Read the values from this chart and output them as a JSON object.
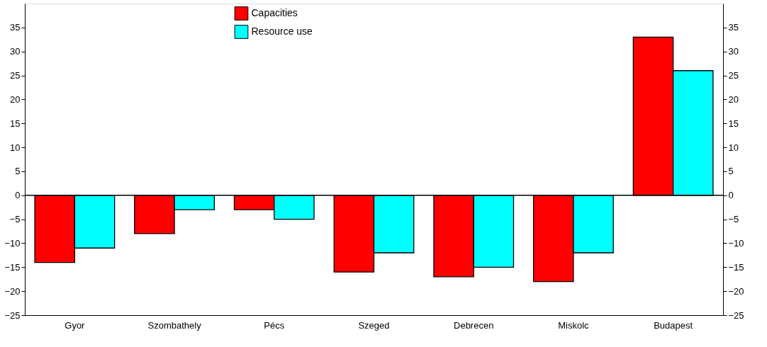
{
  "chart_data": {
    "type": "bar",
    "categories": [
      "Gyor",
      "Szombathely",
      "Pécs",
      "Szeged",
      "Debrecen",
      "Miskolc",
      "Budapest"
    ],
    "series": [
      {
        "name": "Capacities",
        "color": "#ff0000",
        "values": [
          -14,
          -8,
          -3,
          -16,
          -17,
          -18,
          33
        ]
      },
      {
        "name": "Resource use",
        "color": "#00ffff",
        "values": [
          -11,
          -3,
          -5,
          -12,
          -15,
          -12,
          26
        ]
      }
    ],
    "ylim": [
      -25,
      40
    ],
    "yticks": [
      -25,
      -20,
      -15,
      -10,
      -5,
      0,
      5,
      10,
      15,
      20,
      25,
      30,
      35
    ],
    "y2lim": [
      -25,
      40
    ],
    "y2ticks": [
      -25,
      -20,
      -15,
      -10,
      -5,
      0,
      5,
      10,
      15,
      20,
      25,
      30,
      35
    ],
    "ref_lines": [
      {
        "axis": "y",
        "value": 0,
        "color": "#000000"
      }
    ],
    "legend": "top",
    "grid": false
  }
}
